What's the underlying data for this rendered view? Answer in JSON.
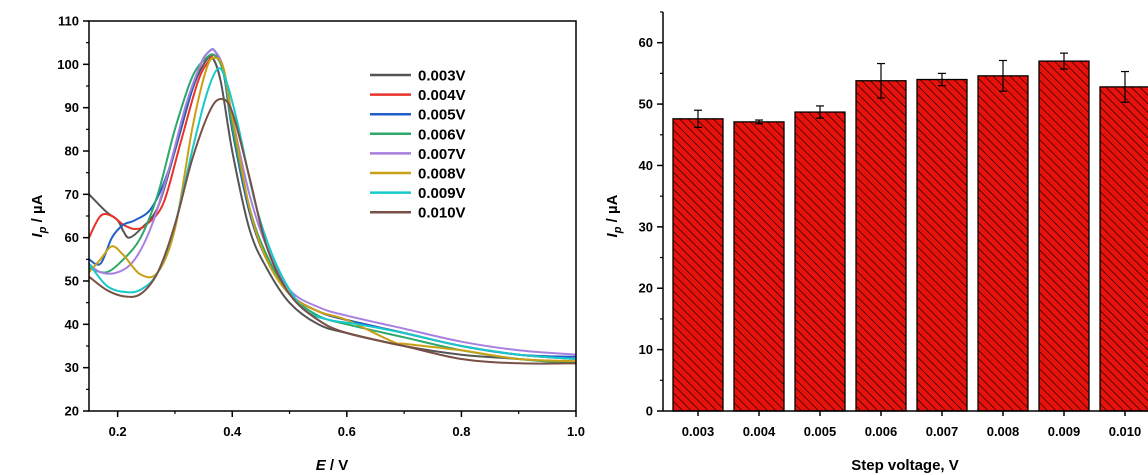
{
  "chart_data": [
    {
      "type": "line",
      "xlabel_symbol": "E",
      "xlabel_unit": " / V",
      "ylabel_symbol": "I",
      "ylabel_sub": "p",
      "ylabel_unit": " / µA",
      "xlim": [
        0.15,
        1.0
      ],
      "ylim": [
        20,
        110
      ],
      "x_ticks": [
        0.2,
        0.4,
        0.6,
        0.8,
        1.0
      ],
      "x_tick_labels": [
        "0.2",
        "0.4",
        "0.6",
        "0.8",
        "1.0"
      ],
      "y_ticks": [
        20,
        30,
        40,
        50,
        60,
        70,
        80,
        90,
        100,
        110
      ],
      "y_tick_labels": [
        "20",
        "30",
        "40",
        "50",
        "60",
        "70",
        "80",
        "90",
        "100",
        "110"
      ],
      "legend_position": "upper-right",
      "grid": false,
      "series": [
        {
          "name": "0.003V",
          "color": "#555555",
          "x": [
            0.15,
            0.18,
            0.2,
            0.21,
            0.22,
            0.24,
            0.27,
            0.3,
            0.33,
            0.35,
            0.365,
            0.38,
            0.4,
            0.43,
            0.46,
            0.5,
            0.55,
            0.6,
            0.7,
            0.8,
            0.9,
            1.0
          ],
          "y": [
            70,
            66,
            64,
            61.5,
            60,
            62,
            67,
            80,
            94,
            100,
            101.5,
            96,
            80,
            62,
            53,
            45,
            40,
            38,
            35,
            33,
            32,
            31
          ]
        },
        {
          "name": "0.004V",
          "color": "#e8322b",
          "x": [
            0.15,
            0.17,
            0.19,
            0.21,
            0.23,
            0.25,
            0.28,
            0.31,
            0.34,
            0.36,
            0.37,
            0.385,
            0.4,
            0.43,
            0.46,
            0.5,
            0.55,
            0.6,
            0.7,
            0.8,
            0.9,
            1.0
          ],
          "y": [
            60,
            65,
            65,
            63,
            62,
            63,
            68,
            82,
            96,
            101,
            102,
            98,
            85,
            66,
            55,
            47,
            43,
            41,
            38,
            35,
            33,
            32
          ]
        },
        {
          "name": "0.005V",
          "color": "#1f5fc9",
          "x": [
            0.15,
            0.17,
            0.19,
            0.21,
            0.23,
            0.26,
            0.29,
            0.32,
            0.345,
            0.36,
            0.37,
            0.385,
            0.4,
            0.43,
            0.46,
            0.5,
            0.55,
            0.6,
            0.7,
            0.8,
            0.9,
            1.0
          ],
          "y": [
            55,
            54,
            60,
            63,
            64,
            67,
            76,
            90,
            100,
            103,
            103,
            98,
            85,
            66,
            55,
            47,
            43,
            41,
            38,
            35,
            33,
            32.5
          ]
        },
        {
          "name": "0.006V",
          "color": "#2ca86a",
          "x": [
            0.15,
            0.18,
            0.21,
            0.24,
            0.27,
            0.3,
            0.33,
            0.355,
            0.37,
            0.385,
            0.4,
            0.43,
            0.46,
            0.5,
            0.55,
            0.6,
            0.7,
            0.8,
            0.9,
            1.0
          ],
          "y": [
            53,
            52,
            55,
            60,
            70,
            85,
            97,
            101.5,
            102,
            98,
            86,
            67,
            56,
            47,
            42,
            40,
            37,
            34,
            32,
            31
          ]
        },
        {
          "name": "0.007V",
          "color": "#a87fe0",
          "x": [
            0.15,
            0.17,
            0.2,
            0.23,
            0.26,
            0.29,
            0.32,
            0.345,
            0.36,
            0.37,
            0.385,
            0.4,
            0.43,
            0.46,
            0.5,
            0.55,
            0.6,
            0.7,
            0.8,
            0.9,
            1.0
          ],
          "y": [
            54,
            52,
            52,
            55,
            63,
            76,
            91,
            100,
            103,
            103,
            99,
            88,
            70,
            58,
            48,
            44,
            42,
            39,
            36,
            34,
            33
          ]
        },
        {
          "name": "0.008V",
          "color": "#c9a014",
          "x": [
            0.15,
            0.17,
            0.19,
            0.21,
            0.24,
            0.27,
            0.3,
            0.33,
            0.355,
            0.37,
            0.385,
            0.4,
            0.43,
            0.46,
            0.5,
            0.55,
            0.6,
            0.68,
            0.7,
            0.8,
            0.9,
            1.0
          ],
          "y": [
            52,
            55,
            58,
            56,
            51.5,
            52,
            62,
            85,
            99,
            101.5,
            99,
            88,
            67,
            55,
            47,
            43,
            41,
            36,
            35.5,
            34,
            32,
            31.5
          ]
        },
        {
          "name": "0.009V",
          "color": "#17c9c9",
          "x": [
            0.15,
            0.18,
            0.21,
            0.24,
            0.27,
            0.3,
            0.33,
            0.355,
            0.375,
            0.39,
            0.41,
            0.44,
            0.47,
            0.5,
            0.53,
            0.57,
            0.62,
            0.7,
            0.8,
            0.9,
            1.0
          ],
          "y": [
            54,
            49,
            47.5,
            48,
            52,
            63,
            80,
            93,
            99,
            96,
            86,
            68,
            56,
            48,
            43,
            41,
            40,
            38,
            35,
            33,
            32
          ]
        },
        {
          "name": "0.010V",
          "color": "#7a4f45",
          "x": [
            0.15,
            0.18,
            0.21,
            0.24,
            0.27,
            0.3,
            0.33,
            0.36,
            0.38,
            0.4,
            0.43,
            0.46,
            0.5,
            0.55,
            0.6,
            0.7,
            0.8,
            0.9,
            1.0
          ],
          "y": [
            51,
            48,
            46.5,
            47,
            52,
            63,
            78,
            89,
            92,
            89,
            74,
            58,
            47,
            41,
            38,
            35,
            32,
            31,
            31
          ]
        }
      ]
    },
    {
      "type": "bar",
      "xlabel": "Step voltage, V",
      "ylabel_symbol": "I",
      "ylabel_sub": "p",
      "ylabel_unit": " / µA",
      "ylim": [
        0,
        65
      ],
      "y_ticks": [
        0,
        10,
        20,
        30,
        40,
        50,
        60
      ],
      "y_tick_labels": [
        "0",
        "10",
        "20",
        "30",
        "40",
        "50",
        "60"
      ],
      "categories": [
        "0.003",
        "0.004",
        "0.005",
        "0.006",
        "0.007",
        "0.008",
        "0.009",
        "0.010"
      ],
      "values": [
        47.6,
        47.1,
        48.7,
        53.8,
        54.0,
        54.6,
        57.0,
        52.8
      ],
      "errors": [
        1.4,
        0.3,
        1.0,
        2.8,
        1.0,
        2.5,
        1.3,
        2.5
      ],
      "bar_color": "#e8120c",
      "hatch": "diagonal"
    }
  ]
}
